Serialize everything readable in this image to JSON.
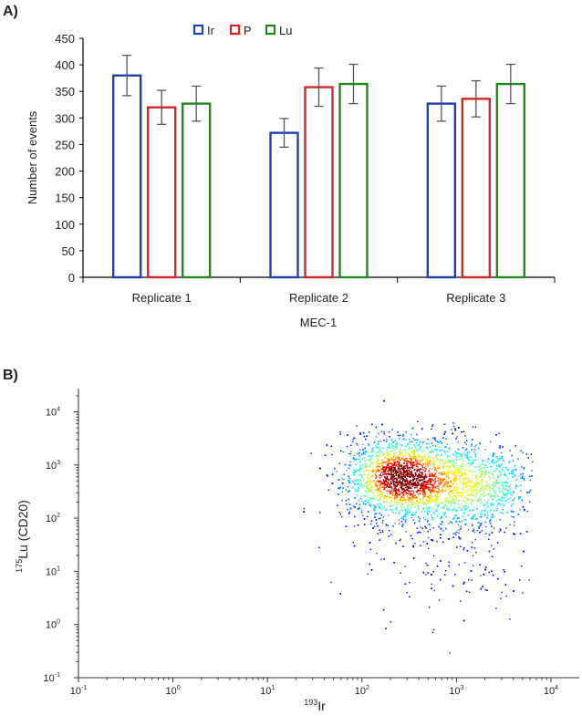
{
  "chart_data": [
    {
      "panel_label": "A)",
      "type": "bar",
      "categories": [
        "Replicate 1",
        "Replicate 2",
        "Replicate 3"
      ],
      "xlabel": "MEC-1",
      "ylabel": "Number of events",
      "ylim": [
        0,
        450
      ],
      "yticks": [
        0,
        50,
        100,
        150,
        200,
        250,
        300,
        350,
        400,
        450
      ],
      "legend_placement": "top-center",
      "grid": false,
      "bar_style": "outlined",
      "series": [
        {
          "name": "Ir",
          "color": "#1f3fb4",
          "values": [
            380,
            272,
            327
          ],
          "errors": [
            38,
            27,
            33
          ]
        },
        {
          "name": "P",
          "color": "#d62728",
          "values": [
            320,
            358,
            336
          ],
          "errors": [
            32,
            36,
            34
          ]
        },
        {
          "name": "Lu",
          "color": "#1e8a1e",
          "values": [
            327,
            364,
            364
          ],
          "errors": [
            33,
            37,
            37
          ]
        }
      ]
    },
    {
      "panel_label": "B)",
      "type": "scatter",
      "xscale": "log",
      "yscale": "log",
      "xlabel": {
        "sup": "193",
        "text": "Ir"
      },
      "ylabel": {
        "sup": "175",
        "text": "Lu (CD20)"
      },
      "xlim": [
        0.1,
        20000
      ],
      "ylim": [
        0.1,
        25000
      ],
      "tick_base": "10",
      "xtick_exponents": [
        "-1",
        "0",
        "1",
        "2",
        "3",
        "4"
      ],
      "ytick_exponents": [
        "-1",
        "0",
        "1",
        "2",
        "3",
        "4"
      ],
      "coloring": "density (jet colormap: blue low, red high)",
      "population_peak": {
        "x": 250,
        "y": 600
      },
      "population_x_range": [
        20,
        6000
      ],
      "population_y_range": [
        0.1,
        20000
      ],
      "grid": false
    }
  ]
}
